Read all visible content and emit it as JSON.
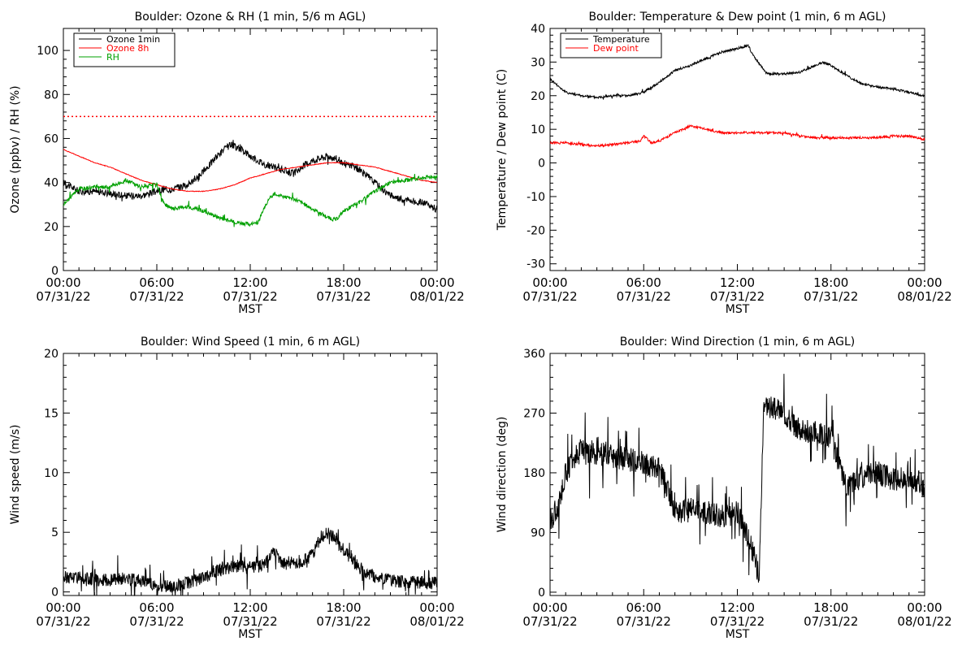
{
  "chart_data": [
    {
      "type": "line",
      "title": "Boulder: Ozone & RH (1 min, 5/6 m AGL)",
      "ylabel": "Ozone (ppbv) / RH (%)",
      "xlabel": "MST",
      "ylim": [
        0,
        110
      ],
      "yticks": [
        "0",
        "20",
        "40",
        "60",
        "80",
        "100"
      ],
      "xticks": [
        [
          "00:00",
          "07/31/22"
        ],
        [
          "06:00",
          "07/31/22"
        ],
        [
          "12:00",
          "07/31/22"
        ],
        [
          "18:00",
          "07/31/22"
        ],
        [
          "00:00",
          "08/01/22"
        ]
      ],
      "legend_position": "top-left",
      "series": [
        {
          "name": "Ozone 1min",
          "color": "#000000",
          "x_hours": [
            0,
            1,
            2,
            3,
            4,
            5,
            6,
            7,
            8,
            9,
            10,
            10.7,
            11.5,
            12,
            13,
            14,
            14.8,
            15.5,
            16,
            17,
            17.5,
            18,
            19,
            20,
            21,
            22,
            23,
            24
          ],
          "values": [
            40,
            36,
            36,
            35,
            34,
            34,
            36,
            37,
            39,
            45,
            53,
            57,
            55,
            52,
            48,
            46,
            44,
            48,
            50,
            52,
            51,
            49,
            46,
            40,
            34,
            32,
            31,
            28
          ]
        },
        {
          "name": "Ozone 8h",
          "color": "#ff0000",
          "x_hours": [
            0,
            1,
            2,
            3,
            4,
            5,
            6,
            7,
            8,
            9,
            10,
            11,
            12,
            13,
            14,
            15,
            16,
            17,
            18,
            19,
            20,
            21,
            22,
            23,
            24
          ],
          "values": [
            55,
            52,
            49,
            47,
            44,
            41,
            39,
            37,
            36,
            36,
            37,
            39,
            42,
            44,
            46,
            47,
            48,
            49,
            49,
            48,
            47,
            45,
            43,
            41,
            40
          ]
        },
        {
          "name": "RH",
          "color": "#00a000",
          "x_hours": [
            0,
            1,
            2,
            3,
            4,
            5,
            6,
            6.5,
            7,
            8,
            9,
            10,
            11,
            12,
            12.5,
            13,
            13.5,
            14,
            15,
            16,
            17,
            17.5,
            18,
            19,
            20,
            21,
            22,
            23,
            24
          ],
          "values": [
            30,
            37,
            38,
            38,
            41,
            38,
            39,
            30,
            28,
            29,
            27,
            24,
            22,
            21,
            22,
            30,
            35,
            34,
            32,
            28,
            24,
            23,
            27,
            31,
            36,
            40,
            41,
            42,
            43
          ]
        }
      ],
      "reference_lines": [
        {
          "value": 70,
          "color": "#ff0000",
          "style": "dotted"
        }
      ]
    },
    {
      "type": "line",
      "title": "Boulder: Temperature & Dew point (1 min, 6 m AGL)",
      "ylabel": "Temperature / Dew point (C)",
      "xlabel": "MST",
      "ylim": [
        -32,
        40
      ],
      "yticks": [
        "-30",
        "-20",
        "-10",
        "0",
        "10",
        "20",
        "30",
        "40"
      ],
      "xticks": [
        [
          "00:00",
          "07/31/22"
        ],
        [
          "06:00",
          "07/31/22"
        ],
        [
          "12:00",
          "07/31/22"
        ],
        [
          "18:00",
          "07/31/22"
        ],
        [
          "00:00",
          "08/01/22"
        ]
      ],
      "legend_position": "top-left",
      "series": [
        {
          "name": "Temperature",
          "color": "#000000",
          "x_hours": [
            0,
            1,
            2,
            3,
            4,
            5,
            6,
            7,
            8,
            9,
            10,
            11,
            12,
            12.7,
            13,
            13.8,
            14,
            15,
            16,
            17,
            17.5,
            18,
            19,
            20,
            21,
            22,
            23,
            24
          ],
          "values": [
            25,
            21,
            20,
            19.5,
            20,
            20,
            21,
            24,
            27.5,
            29,
            31,
            33,
            34,
            35,
            32,
            27,
            26.5,
            26.5,
            27,
            29,
            30,
            29,
            26,
            23.5,
            22.5,
            22,
            21,
            20
          ]
        },
        {
          "name": "Dew point",
          "color": "#ff0000",
          "x_hours": [
            0,
            1,
            2,
            3,
            4,
            5,
            5.8,
            6,
            6.5,
            7,
            8,
            8.5,
            9,
            10,
            11,
            12,
            13,
            14,
            15,
            16,
            17,
            18,
            19,
            20,
            21,
            22,
            23,
            24
          ],
          "values": [
            6,
            6,
            5.5,
            5,
            5.5,
            6,
            6.5,
            8,
            6,
            6.5,
            9,
            10,
            11,
            10,
            9,
            9,
            9,
            9,
            9,
            8,
            7.5,
            7.5,
            7.5,
            7.5,
            7.5,
            8,
            8,
            7
          ]
        }
      ]
    },
    {
      "type": "line",
      "title": "Boulder: Wind Speed (1 min, 6 m AGL)",
      "ylabel": "Wind speed (m/s)",
      "xlabel": "MST",
      "ylim": [
        -0.3,
        20
      ],
      "yticks": [
        "0",
        "5",
        "10",
        "15",
        "20"
      ],
      "xticks": [
        [
          "00:00",
          "07/31/22"
        ],
        [
          "06:00",
          "07/31/22"
        ],
        [
          "12:00",
          "07/31/22"
        ],
        [
          "18:00",
          "07/31/22"
        ],
        [
          "00:00",
          "08/01/22"
        ]
      ],
      "series": [
        {
          "name": "",
          "color": "#000000",
          "x_hours": [
            0,
            1,
            2,
            3,
            4,
            5,
            6,
            7,
            8,
            9,
            10,
            11,
            12,
            13,
            13.5,
            14,
            15,
            16,
            16.5,
            17,
            17.5,
            18,
            19,
            20,
            21,
            22,
            23,
            24
          ],
          "values": [
            1.2,
            1.3,
            1.0,
            1.0,
            1.1,
            0.9,
            0.5,
            0.5,
            0.8,
            1.2,
            1.8,
            2.2,
            2.0,
            2.4,
            3.5,
            2.5,
            2.4,
            3.0,
            4.5,
            5.0,
            4.5,
            3.5,
            2.0,
            1.3,
            1.0,
            0.8,
            0.8,
            0.7
          ]
        }
      ]
    },
    {
      "type": "line",
      "title": "Boulder: Wind Direction (1 min, 6 m AGL)",
      "ylabel": "Wind direction (deg)",
      "xlabel": "MST",
      "ylim": [
        -5,
        360
      ],
      "yticks": [
        "0",
        "90",
        "180",
        "270",
        "360"
      ],
      "xticks": [
        [
          "00:00",
          "07/31/22"
        ],
        [
          "06:00",
          "07/31/22"
        ],
        [
          "12:00",
          "07/31/22"
        ],
        [
          "18:00",
          "07/31/22"
        ],
        [
          "00:00",
          "08/01/22"
        ]
      ],
      "series": [
        {
          "name": "",
          "color": "#000000",
          "x_hours": [
            0,
            0.5,
            1,
            1.5,
            2,
            3,
            4,
            5,
            6,
            7,
            7.5,
            8,
            9,
            10,
            11,
            12,
            12.5,
            13,
            13.4,
            13.7,
            14,
            15,
            15.5,
            16,
            17,
            18,
            18.5,
            19,
            20,
            21,
            22,
            23,
            24
          ],
          "values": [
            110,
            130,
            180,
            200,
            215,
            210,
            205,
            200,
            195,
            185,
            160,
            120,
            125,
            120,
            115,
            120,
            95,
            60,
            25,
            290,
            280,
            270,
            255,
            245,
            240,
            235,
            190,
            160,
            175,
            180,
            170,
            175,
            160
          ]
        }
      ]
    }
  ]
}
